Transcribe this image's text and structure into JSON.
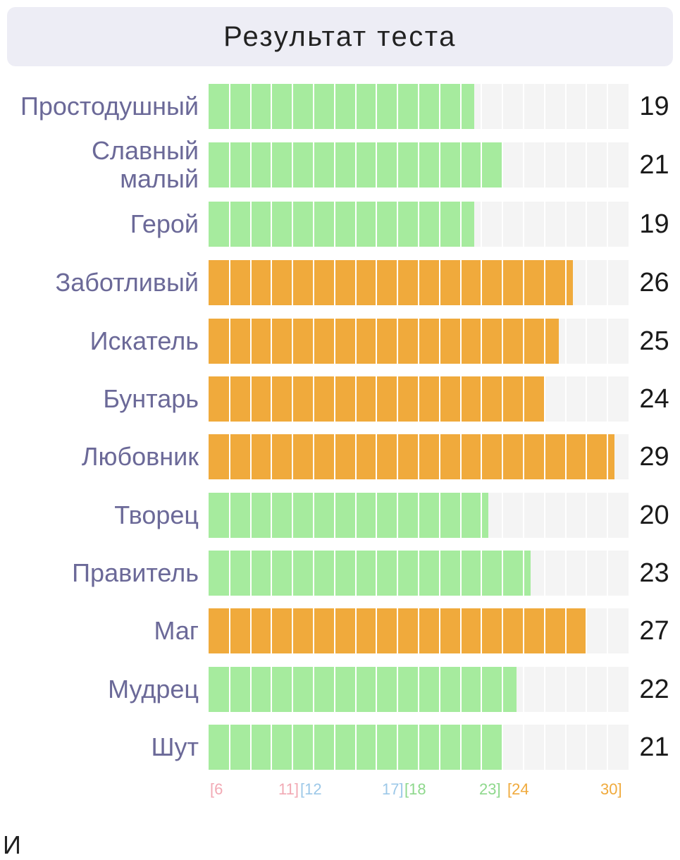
{
  "header": {
    "title": "Результат теста"
  },
  "chart_data": {
    "type": "bar",
    "orientation": "horizontal",
    "title": "Результат теста",
    "xlim": [
      0,
      30
    ],
    "categories": [
      "Простодушный",
      "Славный малый",
      "Герой",
      "Заботливый",
      "Искатель",
      "Бунтарь",
      "Любовник",
      "Творец",
      "Правитель",
      "Маг",
      "Мудрец",
      "Шут"
    ],
    "values": [
      19,
      21,
      19,
      26,
      25,
      24,
      29,
      20,
      23,
      27,
      22,
      21
    ],
    "bar_colors": [
      "green",
      "green",
      "green",
      "orange",
      "orange",
      "orange",
      "orange",
      "green",
      "green",
      "orange",
      "green",
      "green"
    ],
    "colors": {
      "green": "#a6eb9e",
      "orange": "#f0aa3c",
      "track": "#f4f4f4",
      "label": "#6b6998"
    },
    "ranges": [
      {
        "open": "[6",
        "close": "11]",
        "color": "#f2a9b4"
      },
      {
        "open": "[12",
        "close": "17]",
        "color": "#9cc8e8"
      },
      {
        "open": "[18",
        "close": "23]",
        "color": "#8ed88c"
      },
      {
        "open": "[24",
        "close": "30]",
        "color": "#f0aa3c"
      }
    ]
  },
  "footer": {
    "partial_text": "И"
  }
}
